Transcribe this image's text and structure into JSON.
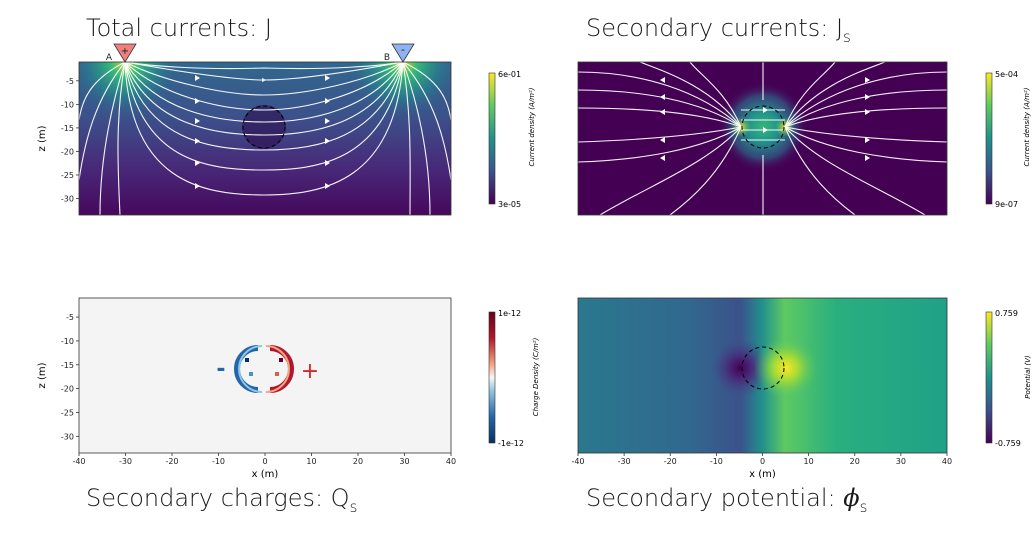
{
  "titles": {
    "total": "Total currents: J",
    "secondary_currents": "Secondary currents: J",
    "secondary_currents_sub": "s",
    "secondary_charges": "Secondary charges: Q",
    "secondary_charges_sub": "s",
    "secondary_potential": "Secondary potential: ",
    "secondary_potential_sym": "ϕ",
    "secondary_potential_sub": "s"
  },
  "electrodes": {
    "a_label": "A",
    "a_sign": "+",
    "b_label": "B",
    "b_sign": "-"
  },
  "charge_signs": {
    "neg": "-",
    "pos": "+"
  },
  "axes": {
    "zlabel": "z (m)",
    "xlabel": "x (m)",
    "z_ticks": [
      "-5",
      "-10",
      "-15",
      "-20",
      "-25",
      "-30"
    ],
    "x_ticks": [
      "-40",
      "-30",
      "-20",
      "-10",
      "0",
      "10",
      "20",
      "30",
      "40"
    ]
  },
  "colorbars": {
    "total": {
      "max": "6e-01",
      "min": "3e-05",
      "label": "Current density (A/m²)"
    },
    "secondary": {
      "max": "5e-04",
      "min": "9e-07",
      "label": "Current density (A/m²)"
    },
    "charge": {
      "max": "1e-12",
      "min": "-1e-12",
      "label": "Charge Density (C/m²)"
    },
    "potential": {
      "max": "0.759",
      "min": "-0.759",
      "label": "Potential (V)"
    }
  },
  "colors": {
    "viridis_dark": "#440154",
    "viridis_mid": "#21918c",
    "viridis_yellow": "#fde725",
    "rdbu_red": "#b2182b",
    "rdbu_blue": "#2166ac",
    "electrode_a": "#f08080",
    "electrode_b": "#8fb3f0"
  }
}
